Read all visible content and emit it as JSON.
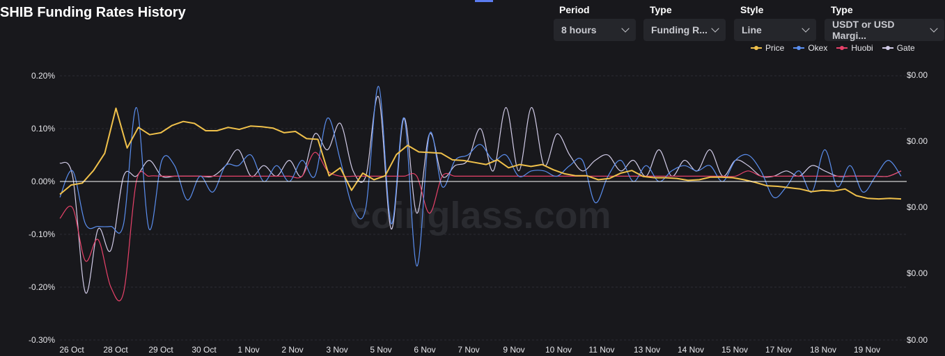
{
  "page": {
    "title": "SHIB Funding Rates History"
  },
  "filters": [
    {
      "label": "Period",
      "value": "8 hours"
    },
    {
      "label": "Type",
      "value": "Funding R..."
    },
    {
      "label": "Style",
      "value": "Line"
    },
    {
      "label": "Type",
      "value": "USDT or USD Margi..."
    }
  ],
  "colors": {
    "price": "#f0c14b",
    "okex": "#5b8ff0",
    "huobi": "#e8426a",
    "gate": "#d2cce8",
    "background": "#18181c",
    "zero_line": "#ffffff"
  },
  "watermark": "coinglass.com",
  "chart_data": {
    "type": "line",
    "title": "SHIB Funding Rates History",
    "x_ticks": [
      "26 Oct",
      "28 Oct",
      "29 Oct",
      "30 Oct",
      "1 Nov",
      "2 Nov",
      "3 Nov",
      "5 Nov",
      "6 Nov",
      "7 Nov",
      "9 Nov",
      "10 Nov",
      "11 Nov",
      "13 Nov",
      "14 Nov",
      "15 Nov",
      "17 Nov",
      "18 Nov",
      "19 Nov"
    ],
    "y_left": {
      "ticks": [
        "0.20%",
        "0.10%",
        "0.00%",
        "-0.10%",
        "-0.20%",
        "-0.30%"
      ],
      "values": [
        0.2,
        0.1,
        0,
        -0.1,
        -0.2,
        -0.3
      ],
      "range": [
        -0.3,
        0.2
      ],
      "unit": "%"
    },
    "y_right": {
      "ticks": [
        "$0.00",
        "$0.00",
        "$0.00",
        "$0.00",
        "$0.00"
      ]
    },
    "grid": true,
    "legend_position": "top-right",
    "series": [
      {
        "name": "Price",
        "axis": "right",
        "values": [
          0.2,
          0.34,
          0.37,
          0.56,
          0.82,
          1.5,
          0.9,
          1.21,
          1.1,
          1.13,
          1.24,
          1.3,
          1.27,
          1.16,
          1.16,
          1.21,
          1.18,
          1.23,
          1.22,
          1.2,
          1.13,
          1.15,
          1.04,
          1.03,
          0.48,
          0.6,
          0.26,
          0.52,
          0.42,
          0.48,
          0.8,
          0.94,
          0.84,
          0.83,
          0.82,
          0.72,
          0.71,
          0.68,
          0.65,
          0.72,
          0.6,
          0.65,
          0.62,
          0.65,
          0.57,
          0.51,
          0.48,
          0.48,
          0.42,
          0.44,
          0.52,
          0.56,
          0.47,
          0.45,
          0.45,
          0.44,
          0.41,
          0.42,
          0.46,
          0.46,
          0.45,
          0.42,
          0.38,
          0.33,
          0.32,
          0.3,
          0.28,
          0.24,
          0.26,
          0.25,
          0.28,
          0.18,
          0.14,
          0.13,
          0.14,
          0.13
        ]
      },
      {
        "name": "Okex",
        "values": [
          -0.03,
          0.02,
          -0.08,
          -0.085,
          -0.085,
          -0.08,
          0.14,
          -0.09,
          0.04,
          0.03,
          -0.035,
          0.01,
          -0.02,
          0.03,
          0.03,
          0.05,
          0.0,
          0.03,
          0.0,
          0.04,
          0.01,
          0.12,
          0.04,
          -0.05,
          -0.05,
          0.18,
          -0.08,
          0.12,
          -0.16,
          0.09,
          -0.01,
          0.04,
          0.05,
          0.07,
          0.04,
          0.05,
          0.01,
          0.02,
          0.02,
          0.01,
          0.03,
          0.04,
          -0.04,
          0.01,
          0.04,
          0.0,
          0.03,
          0.0,
          0.02,
          0.03,
          0.02,
          0.03,
          0.0,
          0.04,
          0.05,
          0.02,
          -0.03,
          -0.01,
          0.02,
          -0.02,
          0.06,
          -0.01,
          0.03,
          -0.02,
          0.01,
          0.04,
          0.01
        ]
      },
      {
        "name": "Huobi",
        "values": [
          -0.07,
          -0.05,
          -0.15,
          -0.11,
          -0.2,
          -0.21,
          0.0,
          0.01,
          0.01,
          0.01,
          0.01,
          0.01,
          0.01,
          0.01,
          0.01,
          0.01,
          0.01,
          0.01,
          0.01,
          0.01,
          0.055,
          0.02,
          0.01,
          0.01,
          0.01,
          0.01,
          0.01,
          0.01,
          0.01,
          -0.06,
          0.01,
          0.01,
          0.01,
          0.01,
          0.01,
          0.01,
          0.01,
          0.01,
          0.01,
          0.01,
          0.01,
          0.01,
          0.01,
          0.01,
          0.01,
          0.01,
          0.01,
          0.01,
          0.01,
          0.01,
          0.01,
          0.01,
          0.01,
          0.01,
          0.02,
          0.01,
          0.01,
          0.01,
          0.01,
          0.01,
          0.01,
          0.01,
          0.01,
          0.01,
          0.01,
          0.01,
          0.02
        ]
      },
      {
        "name": "Gate",
        "values": [
          0.035,
          0.01,
          -0.21,
          -0.09,
          -0.13,
          0.01,
          0.01,
          0.04,
          0.01,
          0.01,
          0.01,
          0.01,
          0.01,
          0.03,
          0.06,
          0.01,
          0.03,
          0.01,
          0.04,
          0.01,
          0.09,
          0.06,
          0.11,
          0.02,
          0.01,
          0.16,
          -0.09,
          0.12,
          -0.06,
          0.09,
          0.01,
          0.03,
          0.04,
          0.1,
          0.02,
          0.14,
          0.02,
          0.14,
          0.03,
          0.09,
          0.05,
          0.02,
          0.04,
          0.05,
          0.02,
          0.04,
          0.01,
          0.06,
          0.01,
          0.04,
          0.02,
          0.06,
          0.01,
          0.04,
          0.03,
          0.01,
          0.01,
          0.02,
          0.01,
          0.03,
          0.02,
          0.01,
          0.01,
          0.01,
          0.01,
          0.01,
          0.02
        ]
      }
    ]
  }
}
